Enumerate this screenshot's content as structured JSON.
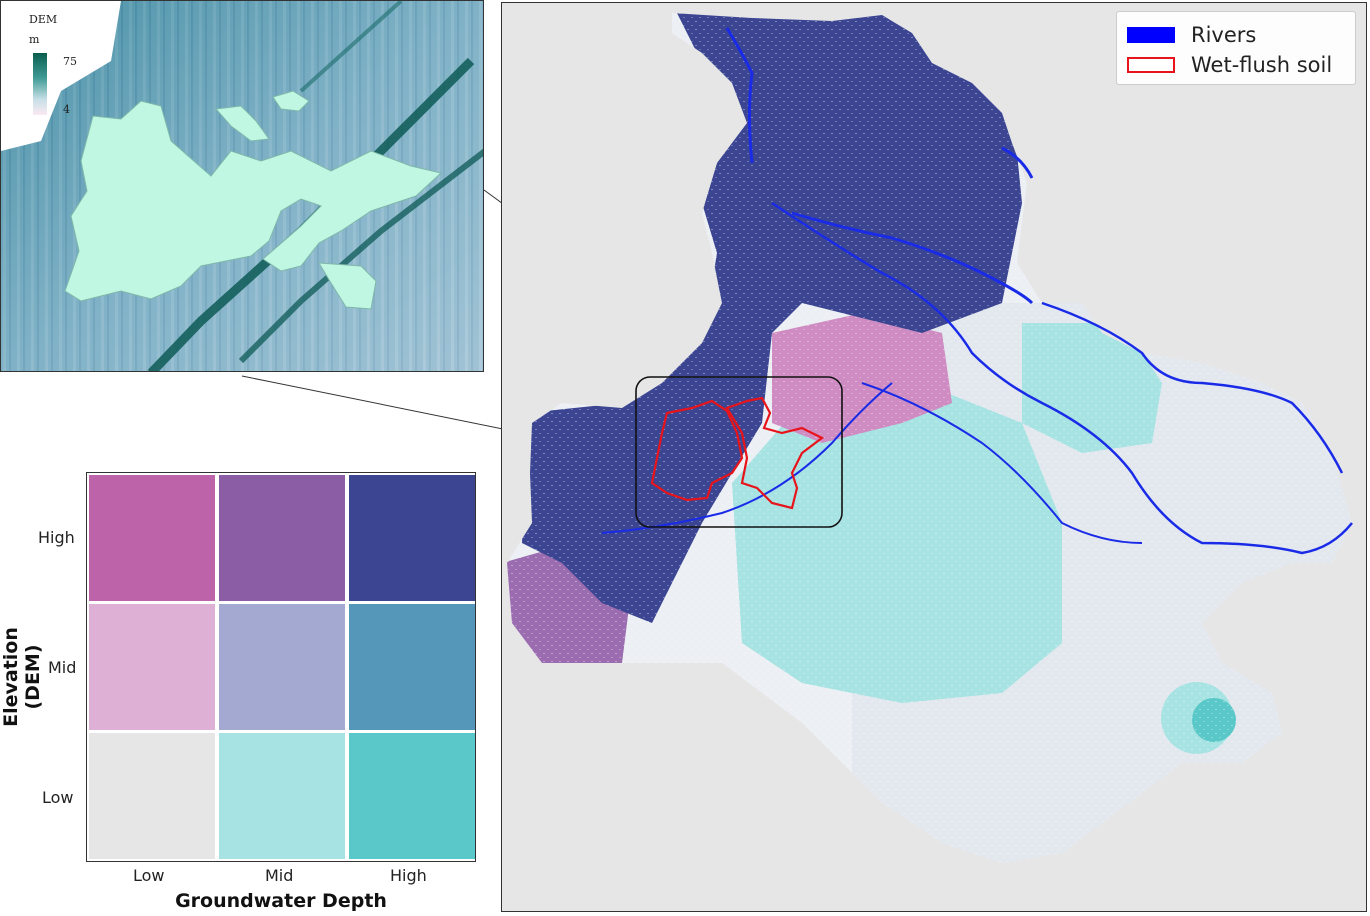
{
  "inset": {
    "legend_title": "DEM",
    "legend_unit": "m",
    "legend_max": "75",
    "legend_min": "4"
  },
  "bivariate_legend": {
    "y_title": "Elevation (DEM)",
    "x_title": "Groundwater Depth",
    "y_levels": [
      "High",
      "Mid",
      "Low"
    ],
    "x_levels": [
      "Low",
      "Mid",
      "High"
    ],
    "colors": [
      [
        "#bd63aa",
        "#8a5da5",
        "#3b4592"
      ],
      [
        "#dfb0d5",
        "#a3a9d1",
        "#5597b9"
      ],
      [
        "#e6e6e6",
        "#a6e3e2",
        "#5ac8c8"
      ]
    ]
  },
  "map_legend": {
    "items": [
      {
        "label": "Rivers",
        "color": "#0000ff",
        "style": "fill"
      },
      {
        "label": "Wet-flush soil",
        "color": "#e8141b",
        "style": "outline"
      }
    ]
  },
  "colors": {
    "map_background": "#e6e6e6",
    "river": "#1a2be8",
    "wet_flush_outline": "#e8141b",
    "inset_patch": "#bff7e2"
  }
}
